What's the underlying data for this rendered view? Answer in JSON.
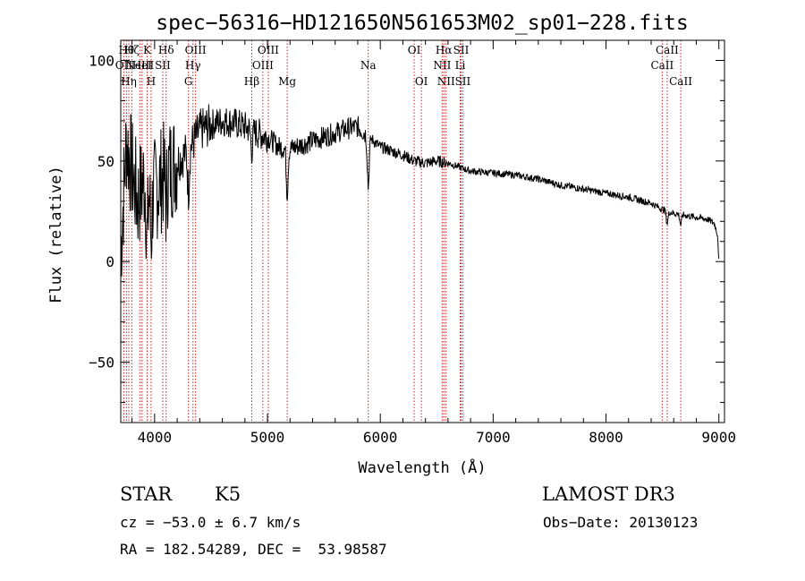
{
  "chart_data": {
    "type": "line",
    "title": "spec−56316−HD121650N561653M02_sp01−228.fits",
    "xlabel": "Wavelength (Å)",
    "ylabel": "Flux (relative)",
    "xlim": [
      3700,
      9050
    ],
    "ylim": [
      -80,
      110
    ],
    "xticks": [
      {
        "value": 4000,
        "label": "4000"
      },
      {
        "value": 5000,
        "label": "5000"
      },
      {
        "value": 6000,
        "label": "6000"
      },
      {
        "value": 7000,
        "label": "7000"
      },
      {
        "value": 8000,
        "label": "8000"
      },
      {
        "value": 9000,
        "label": "9000"
      }
    ],
    "yticks": [
      {
        "value": -50,
        "label": "−50"
      },
      {
        "value": 0,
        "label": "0"
      },
      {
        "value": 50,
        "label": "50"
      },
      {
        "value": 100,
        "label": "100"
      }
    ],
    "continuum": [
      [
        3700,
        5
      ],
      [
        3750,
        60
      ],
      [
        3800,
        45
      ],
      [
        3850,
        30
      ],
      [
        3900,
        40
      ],
      [
        3950,
        38
      ],
      [
        4000,
        35
      ],
      [
        4100,
        45
      ],
      [
        4200,
        50
      ],
      [
        4300,
        55
      ],
      [
        4400,
        65
      ],
      [
        4500,
        68
      ],
      [
        4600,
        70
      ],
      [
        4700,
        69
      ],
      [
        4800,
        67
      ],
      [
        4900,
        64
      ],
      [
        5000,
        62
      ],
      [
        5100,
        57
      ],
      [
        5200,
        56
      ],
      [
        5300,
        58
      ],
      [
        5400,
        60
      ],
      [
        5500,
        62
      ],
      [
        5600,
        64
      ],
      [
        5700,
        66
      ],
      [
        5800,
        67
      ],
      [
        5900,
        62
      ],
      [
        6000,
        57
      ],
      [
        6100,
        55
      ],
      [
        6200,
        53
      ],
      [
        6300,
        50
      ],
      [
        6400,
        49
      ],
      [
        6500,
        50
      ],
      [
        6600,
        49
      ],
      [
        6700,
        47
      ],
      [
        6800,
        45
      ],
      [
        7000,
        44
      ],
      [
        7200,
        43
      ],
      [
        7400,
        41
      ],
      [
        7600,
        38
      ],
      [
        7800,
        36
      ],
      [
        8000,
        34
      ],
      [
        8200,
        32
      ],
      [
        8400,
        29
      ],
      [
        8500,
        26
      ],
      [
        8600,
        24
      ],
      [
        8800,
        22
      ],
      [
        8900,
        21
      ],
      [
        8960,
        19
      ],
      [
        8990,
        13
      ],
      [
        9000,
        0
      ]
    ],
    "absorption_features": [
      {
        "wavelength": 3934,
        "depth": 28
      },
      {
        "wavelength": 3969,
        "depth": 24
      },
      {
        "wavelength": 4102,
        "depth": 15
      },
      {
        "wavelength": 4300,
        "depth": 20
      },
      {
        "wavelength": 4861,
        "depth": 10
      },
      {
        "wavelength": 5175,
        "depth": 22
      },
      {
        "wavelength": 5893,
        "depth": 25
      },
      {
        "wavelength": 8542,
        "depth": 6
      },
      {
        "wavelength": 8662,
        "depth": 5
      }
    ],
    "lines": [
      {
        "wavelength": 3727,
        "label": "OII",
        "row": 1
      },
      {
        "wavelength": 3750,
        "label": "Hθ",
        "row": 0
      },
      {
        "wavelength": 3771,
        "label": "Hη",
        "row": 2
      },
      {
        "wavelength": 3798,
        "label": "Hζ",
        "row": 0
      },
      {
        "wavelength": 3869,
        "label": "NeIII",
        "row": 1
      },
      {
        "wavelength": 3889,
        "label": "HeI",
        "row": 1
      },
      {
        "wavelength": 3934,
        "label": "K",
        "row": 0
      },
      {
        "wavelength": 3969,
        "label": "H",
        "row": 2
      },
      {
        "wavelength": 4072,
        "label": "SII",
        "row": 1
      },
      {
        "wavelength": 4102,
        "label": "Hδ",
        "row": 0
      },
      {
        "wavelength": 4300,
        "label": "G",
        "row": 2
      },
      {
        "wavelength": 4340,
        "label": "Hγ",
        "row": 1
      },
      {
        "wavelength": 4363,
        "label": "OIII",
        "row": 0
      },
      {
        "wavelength": 4861,
        "label": "Hβ",
        "row": 2
      },
      {
        "wavelength": 4959,
        "label": "OIII",
        "row": 1
      },
      {
        "wavelength": 5007,
        "label": "OIII",
        "row": 0
      },
      {
        "wavelength": 5175,
        "label": "Mg",
        "row": 2
      },
      {
        "wavelength": 5893,
        "label": "Na",
        "row": 1
      },
      {
        "wavelength": 6300,
        "label": "OI",
        "row": 0
      },
      {
        "wavelength": 6364,
        "label": "OI",
        "row": 2
      },
      {
        "wavelength": 6548,
        "label": "NII",
        "row": 1
      },
      {
        "wavelength": 6563,
        "label": "Hα",
        "row": 0
      },
      {
        "wavelength": 6583,
        "label": "NII",
        "row": 2
      },
      {
        "wavelength": 6708,
        "label": "Li",
        "row": 1
      },
      {
        "wavelength": 6716,
        "label": "SII",
        "row": 0
      },
      {
        "wavelength": 6731,
        "label": "SII",
        "row": 2
      },
      {
        "wavelength": 8498,
        "label": "CaII",
        "row": 1
      },
      {
        "wavelength": 8542,
        "label": "CaII",
        "row": 0
      },
      {
        "wavelength": 8662,
        "label": "CaII",
        "row": 2
      }
    ],
    "line_color": "#d62020"
  },
  "info": {
    "object_class": "STAR",
    "subclass": "K5",
    "redshift": "cz = −53.0 ± 6.7 km/s",
    "coordinates": "RA = 182.54289, DEC =  53.98587",
    "survey": "LAMOST DR3",
    "obs_date": "Obs−Date: 20130123"
  }
}
